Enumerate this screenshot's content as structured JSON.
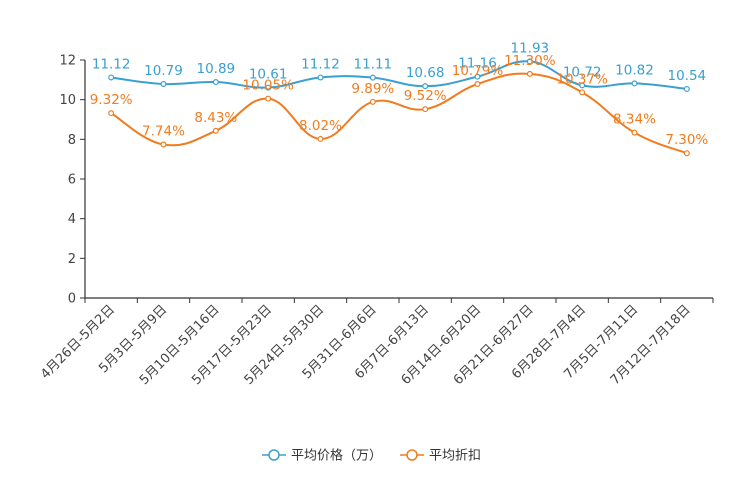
{
  "chart_data": {
    "type": "line",
    "categories": [
      "4月26日-5月2日",
      "5月3日-5月9日",
      "5月10日-5月16日",
      "5月17日-5月23日",
      "5月24日-5月30日",
      "5月31日-6月6日",
      "6月7日-6月13日",
      "6月14日-6月20日",
      "6月21日-6月27日",
      "6月28日-7月4日",
      "7月5日-7月11日",
      "7月12日-7月18日"
    ],
    "series": [
      {
        "name": "平均价格（万）",
        "color": "#3aa0d0",
        "values": [
          11.12,
          10.79,
          10.89,
          10.61,
          11.12,
          11.11,
          10.68,
          11.16,
          11.93,
          10.72,
          10.82,
          10.54
        ],
        "labels": [
          "11.12",
          "10.79",
          "10.89",
          "10.61",
          "11.12",
          "11.11",
          "10.68",
          "11.16",
          "11.93",
          "10.72",
          "10.82",
          "10.54"
        ]
      },
      {
        "name": "平均折扣",
        "color": "#f07c1f",
        "values": [
          9.32,
          7.74,
          8.43,
          10.05,
          8.02,
          9.89,
          9.52,
          10.79,
          11.3,
          10.37,
          8.34,
          7.3
        ],
        "labels": [
          "9.32%",
          "7.74%",
          "8.43%",
          "10.05%",
          "8.02%",
          "9.89%",
          "9.52%",
          "10.79%",
          "11.30%",
          "10.37%",
          "8.34%",
          "7.30%"
        ]
      }
    ],
    "title": "",
    "xlabel": "",
    "ylabel": "",
    "ylim": [
      0,
      12
    ],
    "yticks": [
      "0",
      "2",
      "4",
      "6",
      "8",
      "10",
      "12"
    ],
    "grid": false,
    "legend_position": "bottom-center"
  }
}
